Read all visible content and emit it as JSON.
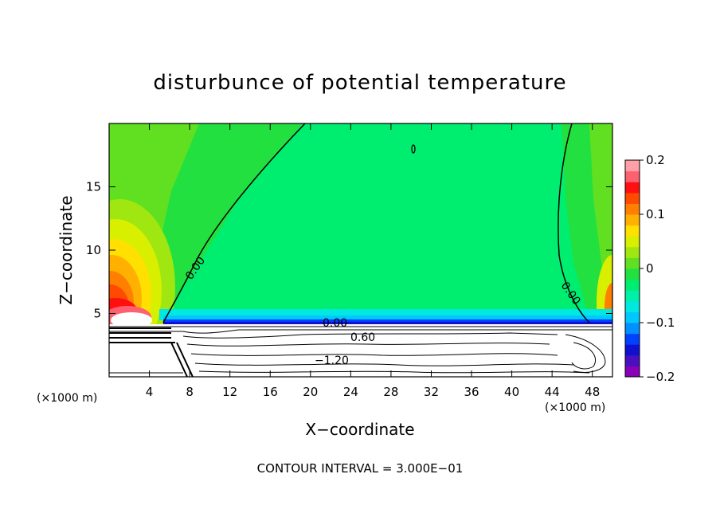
{
  "chart_data": {
    "type": "heatmap",
    "title": "disturbunce of potential temperature",
    "xlabel": "X−coordinate",
    "ylabel": "Z−coordinate",
    "x_unit": "(×1000 m)",
    "z_unit": "(×1000 m)",
    "xlim": [
      0,
      50
    ],
    "ylim": [
      0,
      20
    ],
    "x_ticks": [
      "4",
      "8",
      "12",
      "16",
      "20",
      "24",
      "28",
      "32",
      "36",
      "40",
      "44",
      "48"
    ],
    "y_ticks": [
      "5",
      "10",
      "15"
    ],
    "colorbar": {
      "min": -0.2,
      "max": 0.2,
      "tick_labels": [
        "0.2",
        "0.1",
        "0",
        "−0.1",
        "−0.2"
      ],
      "tick_values": [
        0.2,
        0.1,
        0,
        -0.1,
        -0.2
      ],
      "colors": [
        "#8a00b8",
        "#4a10c0",
        "#1010d0",
        "#0040ff",
        "#0090ff",
        "#00c8ff",
        "#00e8e0",
        "#00f0a8",
        "#00ee70",
        "#22e040",
        "#60e020",
        "#a0e610",
        "#d8f000",
        "#ffe000",
        "#ffb000",
        "#ff8000",
        "#ff4a00",
        "#ff1010",
        "#ff6070",
        "#ffa0a8"
      ]
    },
    "contour_labels": [
      "0.00",
      "0.00",
      "0.00",
      "0.60",
      "−1.20"
    ],
    "contour_interval_note": "CONTOUR INTERVAL = 3.000E−01"
  }
}
